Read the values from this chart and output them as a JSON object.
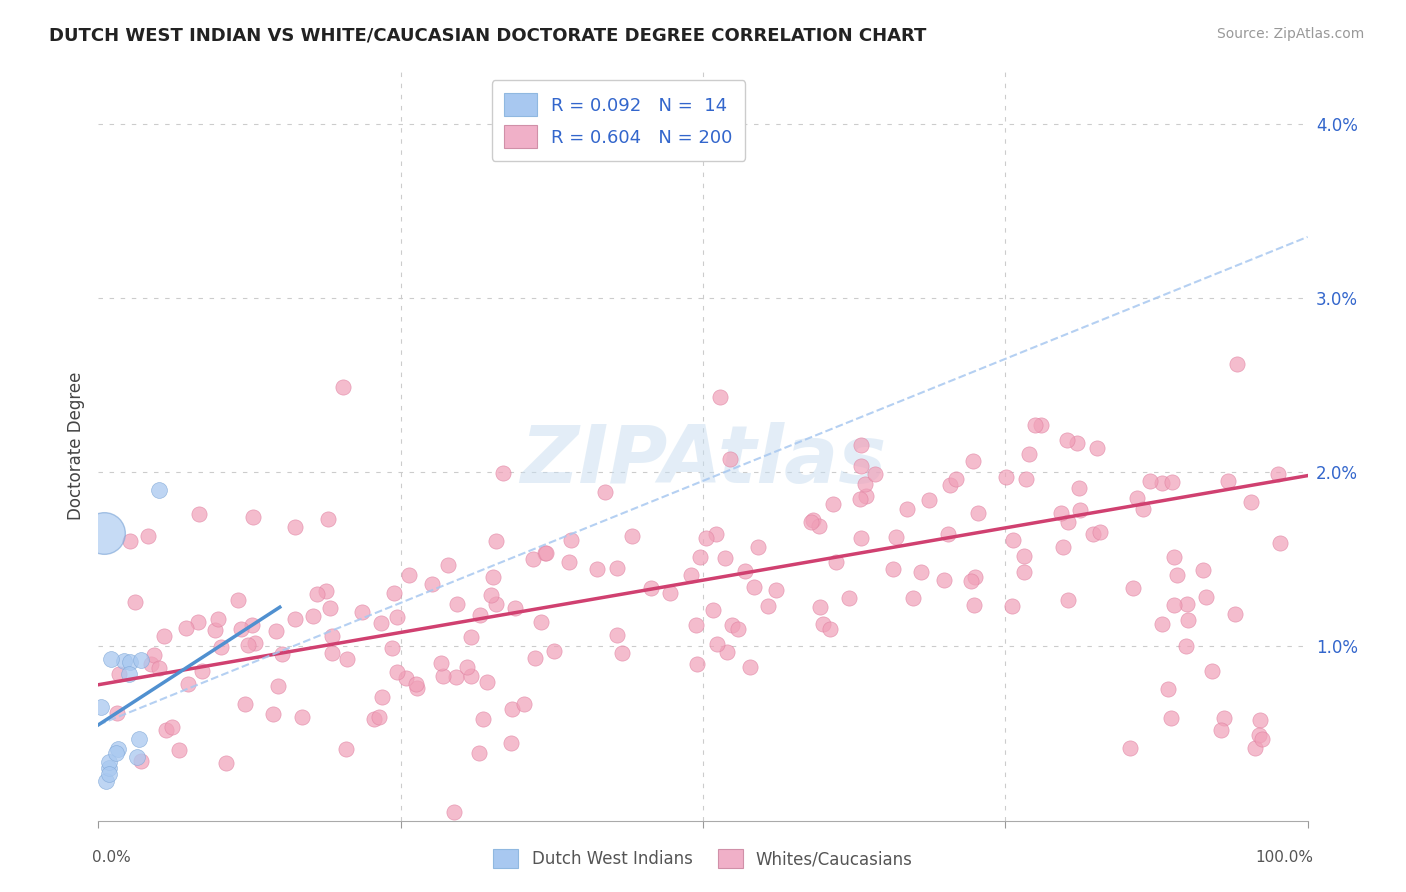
{
  "title": "DUTCH WEST INDIAN VS WHITE/CAUCASIAN DOCTORATE DEGREE CORRELATION CHART",
  "source": "Source: ZipAtlas.com",
  "ylabel": "Doctorate Degree",
  "x_range": [
    0,
    100
  ],
  "y_range": [
    0,
    4.3
  ],
  "background_color": "#ffffff",
  "grid_color": "#cccccc",
  "dutch_color": "#a8c8f0",
  "white_color": "#f0a0b8",
  "dutch_line_color": "#5090d0",
  "white_line_color": "#d04070",
  "dutch_dashed_color": "#a8c8f0",
  "legend_blue_label": "R = 0.092   N =  14",
  "legend_pink_label": "R = 0.604   N = 200",
  "legend_blue_color": "#a8c8f0",
  "legend_pink_color": "#f0b0c8",
  "watermark": "ZIPAtlas",
  "bottom_label_left": "Dutch West Indians",
  "bottom_label_right": "Whites/Caucasians",
  "white_slope": 0.012,
  "white_intercept": 0.78,
  "dutch_solid_slope": 0.045,
  "dutch_solid_intercept": 0.55,
  "dutch_dashed_slope": 0.028,
  "dutch_dashed_intercept": 0.55
}
